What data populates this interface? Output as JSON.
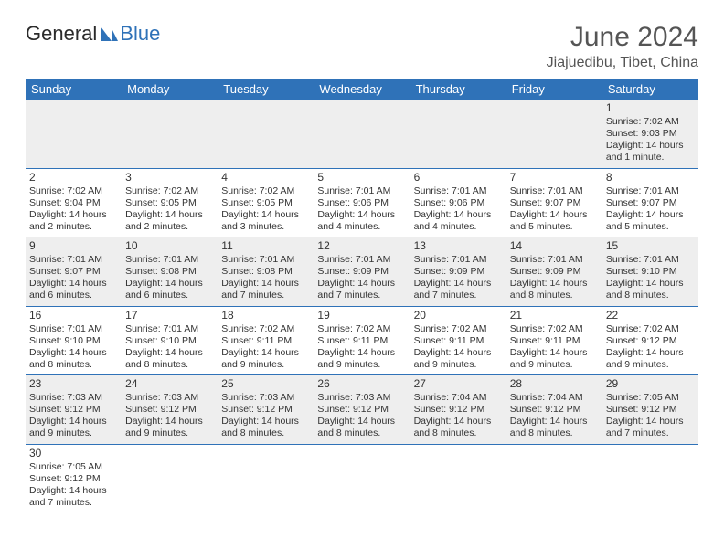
{
  "logo": {
    "text1": "General",
    "text2": "Blue"
  },
  "title": {
    "month": "June 2024",
    "location": "Jiajuedibu, Tibet, China"
  },
  "dayHeaders": [
    "Sunday",
    "Monday",
    "Tuesday",
    "Wednesday",
    "Thursday",
    "Friday",
    "Saturday"
  ],
  "colors": {
    "accent": "#2f72b8",
    "rowAlt": "#eeeeee",
    "text": "#333333"
  },
  "weeks": [
    [
      null,
      null,
      null,
      null,
      null,
      null,
      {
        "n": "1",
        "sr": "Sunrise: 7:02 AM",
        "ss": "Sunset: 9:03 PM",
        "d1": "Daylight: 14 hours",
        "d2": "and 1 minute."
      }
    ],
    [
      {
        "n": "2",
        "sr": "Sunrise: 7:02 AM",
        "ss": "Sunset: 9:04 PM",
        "d1": "Daylight: 14 hours",
        "d2": "and 2 minutes."
      },
      {
        "n": "3",
        "sr": "Sunrise: 7:02 AM",
        "ss": "Sunset: 9:05 PM",
        "d1": "Daylight: 14 hours",
        "d2": "and 2 minutes."
      },
      {
        "n": "4",
        "sr": "Sunrise: 7:02 AM",
        "ss": "Sunset: 9:05 PM",
        "d1": "Daylight: 14 hours",
        "d2": "and 3 minutes."
      },
      {
        "n": "5",
        "sr": "Sunrise: 7:01 AM",
        "ss": "Sunset: 9:06 PM",
        "d1": "Daylight: 14 hours",
        "d2": "and 4 minutes."
      },
      {
        "n": "6",
        "sr": "Sunrise: 7:01 AM",
        "ss": "Sunset: 9:06 PM",
        "d1": "Daylight: 14 hours",
        "d2": "and 4 minutes."
      },
      {
        "n": "7",
        "sr": "Sunrise: 7:01 AM",
        "ss": "Sunset: 9:07 PM",
        "d1": "Daylight: 14 hours",
        "d2": "and 5 minutes."
      },
      {
        "n": "8",
        "sr": "Sunrise: 7:01 AM",
        "ss": "Sunset: 9:07 PM",
        "d1": "Daylight: 14 hours",
        "d2": "and 5 minutes."
      }
    ],
    [
      {
        "n": "9",
        "sr": "Sunrise: 7:01 AM",
        "ss": "Sunset: 9:07 PM",
        "d1": "Daylight: 14 hours",
        "d2": "and 6 minutes."
      },
      {
        "n": "10",
        "sr": "Sunrise: 7:01 AM",
        "ss": "Sunset: 9:08 PM",
        "d1": "Daylight: 14 hours",
        "d2": "and 6 minutes."
      },
      {
        "n": "11",
        "sr": "Sunrise: 7:01 AM",
        "ss": "Sunset: 9:08 PM",
        "d1": "Daylight: 14 hours",
        "d2": "and 7 minutes."
      },
      {
        "n": "12",
        "sr": "Sunrise: 7:01 AM",
        "ss": "Sunset: 9:09 PM",
        "d1": "Daylight: 14 hours",
        "d2": "and 7 minutes."
      },
      {
        "n": "13",
        "sr": "Sunrise: 7:01 AM",
        "ss": "Sunset: 9:09 PM",
        "d1": "Daylight: 14 hours",
        "d2": "and 7 minutes."
      },
      {
        "n": "14",
        "sr": "Sunrise: 7:01 AM",
        "ss": "Sunset: 9:09 PM",
        "d1": "Daylight: 14 hours",
        "d2": "and 8 minutes."
      },
      {
        "n": "15",
        "sr": "Sunrise: 7:01 AM",
        "ss": "Sunset: 9:10 PM",
        "d1": "Daylight: 14 hours",
        "d2": "and 8 minutes."
      }
    ],
    [
      {
        "n": "16",
        "sr": "Sunrise: 7:01 AM",
        "ss": "Sunset: 9:10 PM",
        "d1": "Daylight: 14 hours",
        "d2": "and 8 minutes."
      },
      {
        "n": "17",
        "sr": "Sunrise: 7:01 AM",
        "ss": "Sunset: 9:10 PM",
        "d1": "Daylight: 14 hours",
        "d2": "and 8 minutes."
      },
      {
        "n": "18",
        "sr": "Sunrise: 7:02 AM",
        "ss": "Sunset: 9:11 PM",
        "d1": "Daylight: 14 hours",
        "d2": "and 9 minutes."
      },
      {
        "n": "19",
        "sr": "Sunrise: 7:02 AM",
        "ss": "Sunset: 9:11 PM",
        "d1": "Daylight: 14 hours",
        "d2": "and 9 minutes."
      },
      {
        "n": "20",
        "sr": "Sunrise: 7:02 AM",
        "ss": "Sunset: 9:11 PM",
        "d1": "Daylight: 14 hours",
        "d2": "and 9 minutes."
      },
      {
        "n": "21",
        "sr": "Sunrise: 7:02 AM",
        "ss": "Sunset: 9:11 PM",
        "d1": "Daylight: 14 hours",
        "d2": "and 9 minutes."
      },
      {
        "n": "22",
        "sr": "Sunrise: 7:02 AM",
        "ss": "Sunset: 9:12 PM",
        "d1": "Daylight: 14 hours",
        "d2": "and 9 minutes."
      }
    ],
    [
      {
        "n": "23",
        "sr": "Sunrise: 7:03 AM",
        "ss": "Sunset: 9:12 PM",
        "d1": "Daylight: 14 hours",
        "d2": "and 9 minutes."
      },
      {
        "n": "24",
        "sr": "Sunrise: 7:03 AM",
        "ss": "Sunset: 9:12 PM",
        "d1": "Daylight: 14 hours",
        "d2": "and 9 minutes."
      },
      {
        "n": "25",
        "sr": "Sunrise: 7:03 AM",
        "ss": "Sunset: 9:12 PM",
        "d1": "Daylight: 14 hours",
        "d2": "and 8 minutes."
      },
      {
        "n": "26",
        "sr": "Sunrise: 7:03 AM",
        "ss": "Sunset: 9:12 PM",
        "d1": "Daylight: 14 hours",
        "d2": "and 8 minutes."
      },
      {
        "n": "27",
        "sr": "Sunrise: 7:04 AM",
        "ss": "Sunset: 9:12 PM",
        "d1": "Daylight: 14 hours",
        "d2": "and 8 minutes."
      },
      {
        "n": "28",
        "sr": "Sunrise: 7:04 AM",
        "ss": "Sunset: 9:12 PM",
        "d1": "Daylight: 14 hours",
        "d2": "and 8 minutes."
      },
      {
        "n": "29",
        "sr": "Sunrise: 7:05 AM",
        "ss": "Sunset: 9:12 PM",
        "d1": "Daylight: 14 hours",
        "d2": "and 7 minutes."
      }
    ],
    [
      {
        "n": "30",
        "sr": "Sunrise: 7:05 AM",
        "ss": "Sunset: 9:12 PM",
        "d1": "Daylight: 14 hours",
        "d2": "and 7 minutes."
      },
      null,
      null,
      null,
      null,
      null,
      null
    ]
  ]
}
